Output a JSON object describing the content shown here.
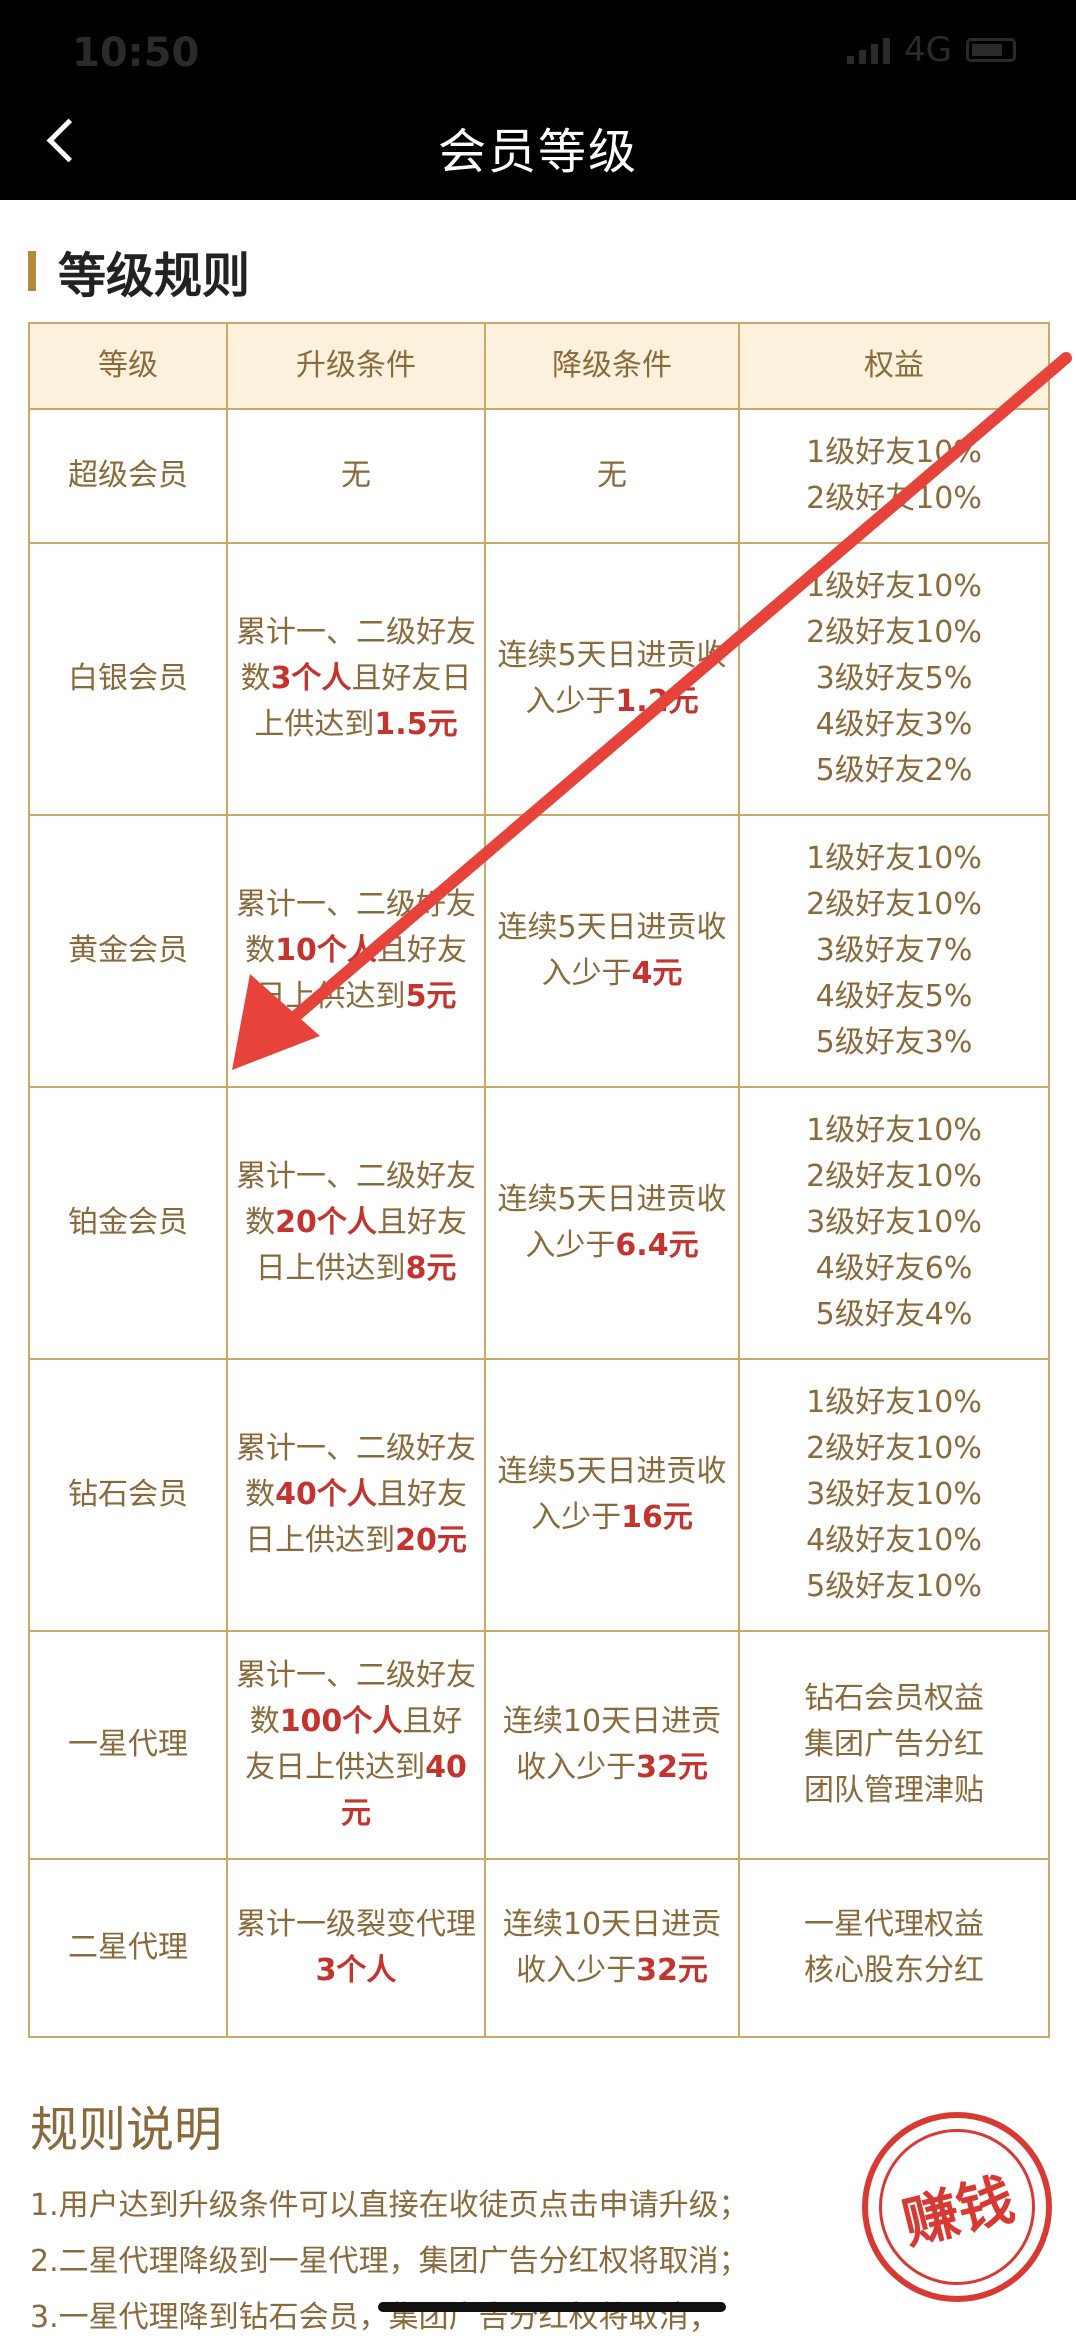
{
  "status_bar": {
    "time": "10:50",
    "network": "4G"
  },
  "header": {
    "title": "会员等级"
  },
  "section": {
    "title": "等级规则"
  },
  "table": {
    "headers": [
      "等级",
      "升级条件",
      "降级条件",
      "权益"
    ],
    "rows": [
      {
        "level": "超级会员",
        "upgrade": [
          {
            "t": "无",
            "h": false
          }
        ],
        "downgrade": [
          {
            "t": "无",
            "h": false
          }
        ],
        "benefits": [
          "1级好友10%",
          "2级好友10%"
        ]
      },
      {
        "level": "白银会员",
        "upgrade": [
          {
            "t": "累计一、二级好友数",
            "h": false
          },
          {
            "t": "3个人",
            "h": true
          },
          {
            "t": "且好友日上供达到",
            "h": false
          },
          {
            "t": "1.5元",
            "h": true
          }
        ],
        "downgrade": [
          {
            "t": "连续5天日进贡收入少于",
            "h": false
          },
          {
            "t": "1.2元",
            "h": true
          }
        ],
        "benefits": [
          "1级好友10%",
          "2级好友10%",
          "3级好友5%",
          "4级好友3%",
          "5级好友2%"
        ]
      },
      {
        "level": "黄金会员",
        "upgrade": [
          {
            "t": "累计一、二级好友数",
            "h": false
          },
          {
            "t": "10个人",
            "h": true
          },
          {
            "t": "且好友日上供达到",
            "h": false
          },
          {
            "t": "5元",
            "h": true
          }
        ],
        "downgrade": [
          {
            "t": "连续5天日进贡收入少于",
            "h": false
          },
          {
            "t": "4元",
            "h": true
          }
        ],
        "benefits": [
          "1级好友10%",
          "2级好友10%",
          "3级好友7%",
          "4级好友5%",
          "5级好友3%"
        ]
      },
      {
        "level": "铂金会员",
        "upgrade": [
          {
            "t": "累计一、二级好友数",
            "h": false
          },
          {
            "t": "20个人",
            "h": true
          },
          {
            "t": "且好友日上供达到",
            "h": false
          },
          {
            "t": "8元",
            "h": true
          }
        ],
        "downgrade": [
          {
            "t": "连续5天日进贡收入少于",
            "h": false
          },
          {
            "t": "6.4元",
            "h": true
          }
        ],
        "benefits": [
          "1级好友10%",
          "2级好友10%",
          "3级好友10%",
          "4级好友6%",
          "5级好友4%"
        ]
      },
      {
        "level": "钻石会员",
        "upgrade": [
          {
            "t": "累计一、二级好友数",
            "h": false
          },
          {
            "t": "40个人",
            "h": true
          },
          {
            "t": "且好友日上供达到",
            "h": false
          },
          {
            "t": "20元",
            "h": true
          }
        ],
        "downgrade": [
          {
            "t": "连续5天日进贡收入少于",
            "h": false
          },
          {
            "t": "16元",
            "h": true
          }
        ],
        "benefits": [
          "1级好友10%",
          "2级好友10%",
          "3级好友10%",
          "4级好友10%",
          "5级好友10%"
        ]
      },
      {
        "level": "一星代理",
        "upgrade": [
          {
            "t": "累计一、二级好友数",
            "h": false
          },
          {
            "t": "100个人",
            "h": true
          },
          {
            "t": "且好友日上供达到",
            "h": false
          },
          {
            "t": "40元",
            "h": true
          }
        ],
        "downgrade": [
          {
            "t": "连续10天日进贡收入少于",
            "h": false
          },
          {
            "t": "32元",
            "h": true
          }
        ],
        "benefits": [
          "钻石会员权益",
          "集团广告分红",
          "团队管理津贴"
        ]
      },
      {
        "level": "二星代理",
        "upgrade": [
          {
            "t": "累计一级裂变代理",
            "h": false
          },
          {
            "t": "3个人",
            "h": true
          }
        ],
        "downgrade": [
          {
            "t": "连续10天日进贡收入少于",
            "h": false
          },
          {
            "t": "32元",
            "h": true
          }
        ],
        "benefits": [
          "一星代理权益",
          "核心股东分红"
        ]
      }
    ]
  },
  "rules_note": {
    "title": "规则说明",
    "lines": [
      "1.用户达到升级条件可以直接在收徒页点击申请升级；",
      "2.二星代理降级到一星代理，集团广告分红权将取消；",
      "3.一星代理降到钻石会员，集团广告分红权将取消；"
    ]
  },
  "stamp": {
    "text": "赚钱"
  },
  "colors": {
    "accent": "#b08a42",
    "text_gold": "#8a6a3b",
    "highlight": "#c4332e",
    "arrow": "#e8433a"
  }
}
